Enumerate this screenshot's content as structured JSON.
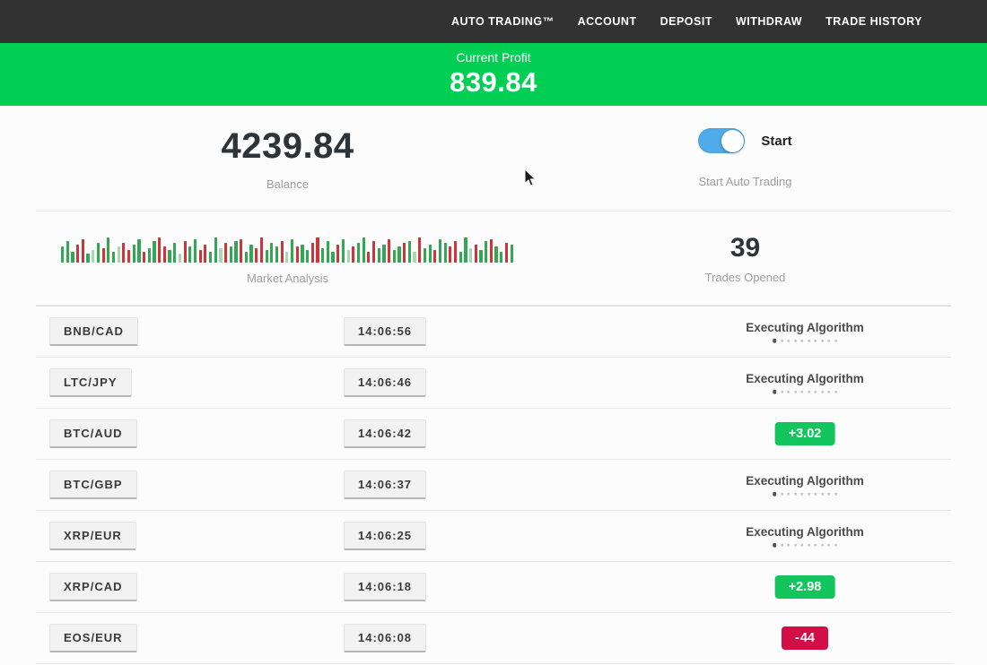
{
  "colors": {
    "header_bg": "#323232",
    "banner_green": "#00cf53",
    "badge_green": "#12c55d",
    "badge_red": "#d30e46",
    "toggle_blue": "#4fabe9"
  },
  "nav": {
    "items": [
      "AUTO TRADING™",
      "ACCOUNT",
      "DEPOSIT",
      "WITHDRAW",
      "TRADE HISTORY"
    ]
  },
  "banner": {
    "label": "Current Profit",
    "value": "839.84"
  },
  "stats": {
    "balance": {
      "value": "4239.84",
      "label": "Balance"
    },
    "auto_trading": {
      "toggle_label": "Start",
      "caption": "Start Auto Trading",
      "toggle_on": true
    },
    "trades_opened": {
      "value": "39",
      "label": "Trades Opened"
    }
  },
  "market_analysis": {
    "label": "Market Analysis",
    "palette": {
      "g": "#33a854",
      "r": "#cf3438",
      "G": "#a8d8b0",
      "R": "#e4a3a8"
    },
    "bars": [
      [
        18,
        "g"
      ],
      [
        24,
        "g"
      ],
      [
        12,
        "g"
      ],
      [
        20,
        "r"
      ],
      [
        26,
        "r"
      ],
      [
        10,
        "g"
      ],
      [
        14,
        "G"
      ],
      [
        22,
        "g"
      ],
      [
        16,
        "r"
      ],
      [
        28,
        "g"
      ],
      [
        12,
        "g"
      ],
      [
        18,
        "G"
      ],
      [
        22,
        "r"
      ],
      [
        14,
        "r"
      ],
      [
        20,
        "g"
      ],
      [
        26,
        "g"
      ],
      [
        12,
        "r"
      ],
      [
        16,
        "g"
      ],
      [
        24,
        "g"
      ],
      [
        28,
        "r"
      ],
      [
        18,
        "r"
      ],
      [
        14,
        "g"
      ],
      [
        22,
        "g"
      ],
      [
        10,
        "G"
      ],
      [
        24,
        "r"
      ],
      [
        18,
        "g"
      ],
      [
        26,
        "g"
      ],
      [
        14,
        "r"
      ],
      [
        20,
        "r"
      ],
      [
        12,
        "g"
      ],
      [
        28,
        "g"
      ],
      [
        16,
        "G"
      ],
      [
        22,
        "r"
      ],
      [
        18,
        "g"
      ],
      [
        24,
        "g"
      ],
      [
        26,
        "r"
      ],
      [
        12,
        "g"
      ],
      [
        20,
        "g"
      ],
      [
        16,
        "r"
      ],
      [
        28,
        "r"
      ],
      [
        14,
        "g"
      ],
      [
        22,
        "g"
      ],
      [
        18,
        "g"
      ],
      [
        24,
        "r"
      ],
      [
        12,
        "G"
      ],
      [
        26,
        "g"
      ],
      [
        18,
        "r"
      ],
      [
        20,
        "g"
      ],
      [
        14,
        "g"
      ],
      [
        22,
        "r"
      ],
      [
        28,
        "r"
      ],
      [
        16,
        "g"
      ],
      [
        24,
        "g"
      ],
      [
        12,
        "g"
      ],
      [
        20,
        "r"
      ],
      [
        26,
        "g"
      ],
      [
        14,
        "G"
      ],
      [
        18,
        "r"
      ],
      [
        22,
        "g"
      ],
      [
        28,
        "g"
      ],
      [
        12,
        "r"
      ],
      [
        24,
        "r"
      ],
      [
        16,
        "g"
      ],
      [
        20,
        "g"
      ],
      [
        26,
        "r"
      ],
      [
        14,
        "g"
      ],
      [
        18,
        "g"
      ],
      [
        22,
        "r"
      ],
      [
        24,
        "g"
      ],
      [
        12,
        "G"
      ],
      [
        28,
        "r"
      ],
      [
        16,
        "g"
      ],
      [
        20,
        "g"
      ],
      [
        14,
        "r"
      ],
      [
        26,
        "g"
      ],
      [
        22,
        "g"
      ],
      [
        18,
        "r"
      ],
      [
        24,
        "r"
      ],
      [
        12,
        "g"
      ],
      [
        28,
        "g"
      ],
      [
        16,
        "G"
      ],
      [
        20,
        "r"
      ],
      [
        14,
        "g"
      ],
      [
        24,
        "g"
      ],
      [
        26,
        "r"
      ],
      [
        18,
        "g"
      ],
      [
        12,
        "g"
      ],
      [
        22,
        "r"
      ],
      [
        20,
        "g"
      ]
    ]
  },
  "trades": {
    "executing_label": "Executing Algorithm",
    "dots_count": 10,
    "rows": [
      {
        "pair": "BNB/CAD",
        "time": "14:06:56",
        "status": {
          "type": "executing"
        }
      },
      {
        "pair": "LTC/JPY",
        "time": "14:06:46",
        "status": {
          "type": "executing"
        }
      },
      {
        "pair": "BTC/AUD",
        "time": "14:06:42",
        "status": {
          "type": "profit",
          "sign": "+",
          "value": "3.02"
        }
      },
      {
        "pair": "BTC/GBP",
        "time": "14:06:37",
        "status": {
          "type": "executing"
        }
      },
      {
        "pair": "XRP/EUR",
        "time": "14:06:25",
        "status": {
          "type": "executing"
        }
      },
      {
        "pair": "XRP/CAD",
        "time": "14:06:18",
        "status": {
          "type": "profit",
          "sign": "+",
          "value": "2.98"
        }
      },
      {
        "pair": "EOS/EUR",
        "time": "14:06:08",
        "status": {
          "type": "loss",
          "sign": "-",
          "value": "44"
        }
      }
    ]
  }
}
